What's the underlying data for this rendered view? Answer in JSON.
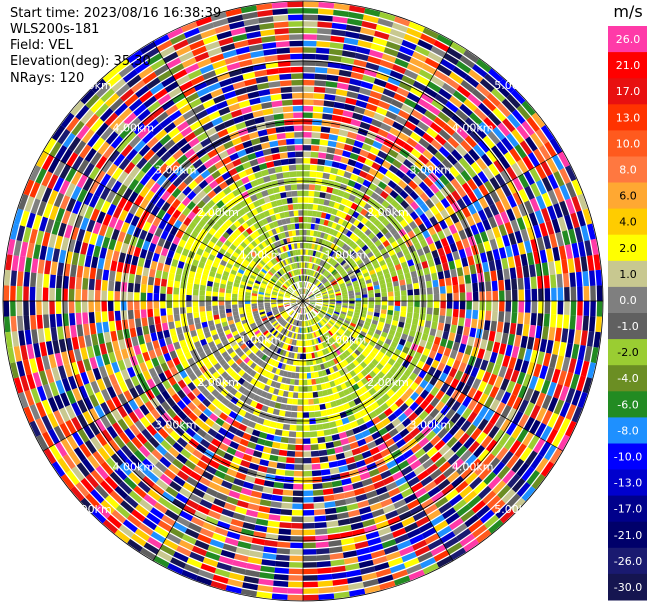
{
  "header": {
    "start_time": "Start time: 2023/08/16 16:38:39",
    "instrument": "WLS200s-181",
    "field": "Field: VEL",
    "elevation": "Elevation(deg): 35.30",
    "nrays": "NRays: 120"
  },
  "chart_data": {
    "type": "heatmap",
    "subtype": "radar-ppi",
    "field": "VEL",
    "units": "m/s",
    "nrays": 120,
    "range_rings_km": [
      1,
      2,
      3,
      4,
      5
    ],
    "ring_labels": [
      "1.00km",
      "2.00km",
      "3.00km",
      "4.00km",
      "5.00km"
    ],
    "colorbar": {
      "title": "m/s",
      "tick_labels": [
        "26.0",
        "21.0",
        "17.0",
        "13.0",
        "10.0",
        "8.0",
        "6.0",
        "4.0",
        "2.0",
        "1.0",
        "0.0",
        "-1.0",
        "-2.0",
        "-4.0",
        "-6.0",
        "-8.0",
        "-10.0",
        "-13.0",
        "-17.0",
        "-21.0",
        "-26.0",
        "-30.0"
      ],
      "colors": [
        "#ff3aa8",
        "#ff0000",
        "#e81010",
        "#ff3300",
        "#ff5a1e",
        "#ff7840",
        "#ffa832",
        "#ffcc00",
        "#ffff00",
        "#c8c890",
        "#7f7f7f",
        "#606060",
        "#9acd32",
        "#6b8e23",
        "#228b22",
        "#1e90ff",
        "#0000ff",
        "#0000cd",
        "#00008b",
        "#00006a",
        "#1a1a70",
        "#151550"
      ]
    },
    "grid": true
  }
}
